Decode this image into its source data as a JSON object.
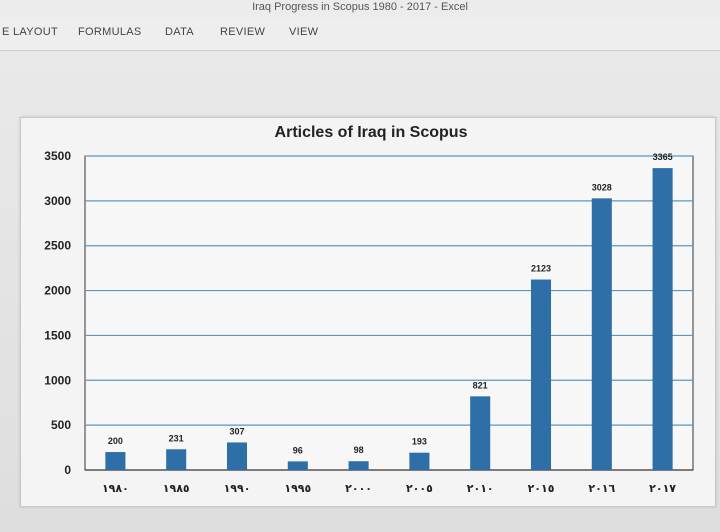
{
  "window": {
    "title": "Iraq Progress in Scopus 1980 - 2017 - Excel"
  },
  "ribbon": {
    "tabs": [
      "E LAYOUT",
      "FORMULAS",
      "DATA",
      "REVIEW",
      "VIEW"
    ]
  },
  "colors": {
    "bar": "#2f6fa8",
    "grid": "#5d95bf"
  },
  "chart_data": {
    "type": "bar",
    "title": "Articles  of Iraq  in Scopus",
    "categories": [
      "١٩٨٠",
      "١٩٨٥",
      "١٩٩٠",
      "١٩٩٥",
      "٢٠٠٠",
      "٢٠٠٥",
      "٢٠١٠",
      "٢٠١٥",
      "٢٠١٦",
      "٢٠١٧"
    ],
    "values": [
      200,
      231,
      307,
      96,
      98,
      193,
      821,
      2123,
      3028,
      3365
    ],
    "value_labels": [
      "200",
      "231",
      "307",
      "96",
      "98",
      "193",
      "821",
      "2123",
      "3028",
      "3365"
    ],
    "yticks": [
      "0",
      "500",
      "1000",
      "1500",
      "2000",
      "2500",
      "3000",
      "3500"
    ],
    "ylim": [
      0,
      3500
    ],
    "grid": true,
    "legend": "none"
  }
}
